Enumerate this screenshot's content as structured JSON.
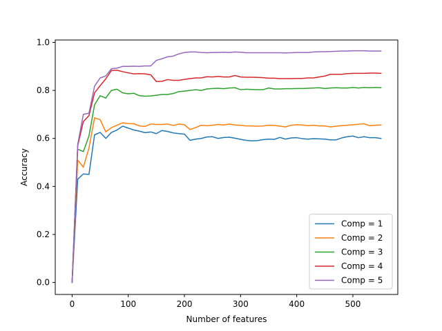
{
  "chart_data": {
    "type": "line",
    "title": "",
    "xlabel": "Number of features",
    "ylabel": "Accuracy",
    "xlim": [
      -30,
      580
    ],
    "ylim": [
      -0.05,
      1.01
    ],
    "xticks": [
      0,
      100,
      200,
      300,
      400,
      500
    ],
    "yticks": [
      0.0,
      0.2,
      0.4,
      0.6,
      0.8,
      1.0
    ],
    "ytick_labels": [
      "0.0",
      "0.2",
      "0.4",
      "0.6",
      "0.8",
      "1.0"
    ],
    "grid": false,
    "legend_position": "lower-right",
    "x": [
      0,
      10,
      20,
      30,
      40,
      50,
      60,
      70,
      80,
      90,
      100,
      110,
      120,
      130,
      140,
      150,
      160,
      170,
      180,
      190,
      200,
      210,
      220,
      230,
      240,
      250,
      260,
      270,
      280,
      290,
      300,
      310,
      320,
      330,
      340,
      350,
      360,
      370,
      380,
      390,
      400,
      410,
      420,
      430,
      440,
      450,
      460,
      470,
      480,
      490,
      500,
      510,
      520,
      530,
      540,
      550
    ],
    "series": [
      {
        "name": "Comp = 1",
        "color": "#1f77b4",
        "values": [
          0.0,
          0.43,
          0.452,
          0.45,
          0.615,
          0.625,
          0.6,
          0.625,
          0.635,
          0.651,
          0.643,
          0.635,
          0.63,
          0.624,
          0.627,
          0.62,
          0.633,
          0.629,
          0.623,
          0.62,
          0.618,
          0.592,
          0.597,
          0.6,
          0.606,
          0.607,
          0.6,
          0.604,
          0.605,
          0.601,
          0.596,
          0.592,
          0.59,
          0.591,
          0.595,
          0.597,
          0.596,
          0.604,
          0.597,
          0.602,
          0.603,
          0.599,
          0.597,
          0.599,
          0.598,
          0.597,
          0.594,
          0.594,
          0.602,
          0.607,
          0.61,
          0.603,
          0.607,
          0.603,
          0.603,
          0.6
        ]
      },
      {
        "name": "Comp = 2",
        "color": "#ff7f0e",
        "values": [
          0.0,
          0.51,
          0.48,
          0.56,
          0.686,
          0.678,
          0.627,
          0.645,
          0.655,
          0.665,
          0.662,
          0.661,
          0.652,
          0.65,
          0.66,
          0.658,
          0.658,
          0.66,
          0.654,
          0.66,
          0.657,
          0.637,
          0.645,
          0.655,
          0.653,
          0.655,
          0.658,
          0.656,
          0.66,
          0.656,
          0.655,
          0.652,
          0.652,
          0.651,
          0.652,
          0.655,
          0.654,
          0.651,
          0.648,
          0.655,
          0.657,
          0.656,
          0.653,
          0.655,
          0.652,
          0.652,
          0.648,
          0.651,
          0.653,
          0.655,
          0.657,
          0.659,
          0.661,
          0.653,
          0.655,
          0.656
        ]
      },
      {
        "name": "Comp = 3",
        "color": "#2ca02c",
        "values": [
          0.0,
          0.555,
          0.545,
          0.61,
          0.74,
          0.778,
          0.768,
          0.8,
          0.805,
          0.79,
          0.786,
          0.788,
          0.778,
          0.776,
          0.777,
          0.78,
          0.783,
          0.783,
          0.787,
          0.795,
          0.797,
          0.8,
          0.803,
          0.8,
          0.806,
          0.808,
          0.809,
          0.807,
          0.81,
          0.811,
          0.803,
          0.805,
          0.804,
          0.803,
          0.803,
          0.81,
          0.806,
          0.806,
          0.807,
          0.807,
          0.808,
          0.808,
          0.809,
          0.81,
          0.811,
          0.808,
          0.81,
          0.811,
          0.81,
          0.81,
          0.812,
          0.81,
          0.812,
          0.811,
          0.812,
          0.811
        ]
      },
      {
        "name": "Comp = 4",
        "color": "#d62728",
        "values": [
          0.0,
          0.57,
          0.67,
          0.695,
          0.79,
          0.82,
          0.848,
          0.883,
          0.884,
          0.878,
          0.873,
          0.869,
          0.87,
          0.869,
          0.865,
          0.837,
          0.838,
          0.845,
          0.842,
          0.842,
          0.846,
          0.849,
          0.852,
          0.852,
          0.857,
          0.856,
          0.858,
          0.856,
          0.856,
          0.862,
          0.856,
          0.855,
          0.855,
          0.854,
          0.853,
          0.851,
          0.851,
          0.849,
          0.849,
          0.849,
          0.85,
          0.85,
          0.852,
          0.852,
          0.856,
          0.86,
          0.867,
          0.867,
          0.867,
          0.87,
          0.871,
          0.871,
          0.871,
          0.872,
          0.872,
          0.871
        ]
      },
      {
        "name": "Comp = 5",
        "color": "#9467bd",
        "values": [
          0.0,
          0.575,
          0.7,
          0.705,
          0.818,
          0.852,
          0.86,
          0.89,
          0.893,
          0.9,
          0.9,
          0.901,
          0.9,
          0.902,
          0.902,
          0.925,
          0.932,
          0.94,
          0.943,
          0.952,
          0.958,
          0.96,
          0.96,
          0.958,
          0.957,
          0.958,
          0.958,
          0.959,
          0.958,
          0.96,
          0.959,
          0.957,
          0.957,
          0.957,
          0.957,
          0.957,
          0.957,
          0.957,
          0.956,
          0.957,
          0.958,
          0.958,
          0.958,
          0.96,
          0.961,
          0.961,
          0.962,
          0.963,
          0.964,
          0.964,
          0.965,
          0.965,
          0.965,
          0.964,
          0.964,
          0.964
        ]
      }
    ]
  }
}
